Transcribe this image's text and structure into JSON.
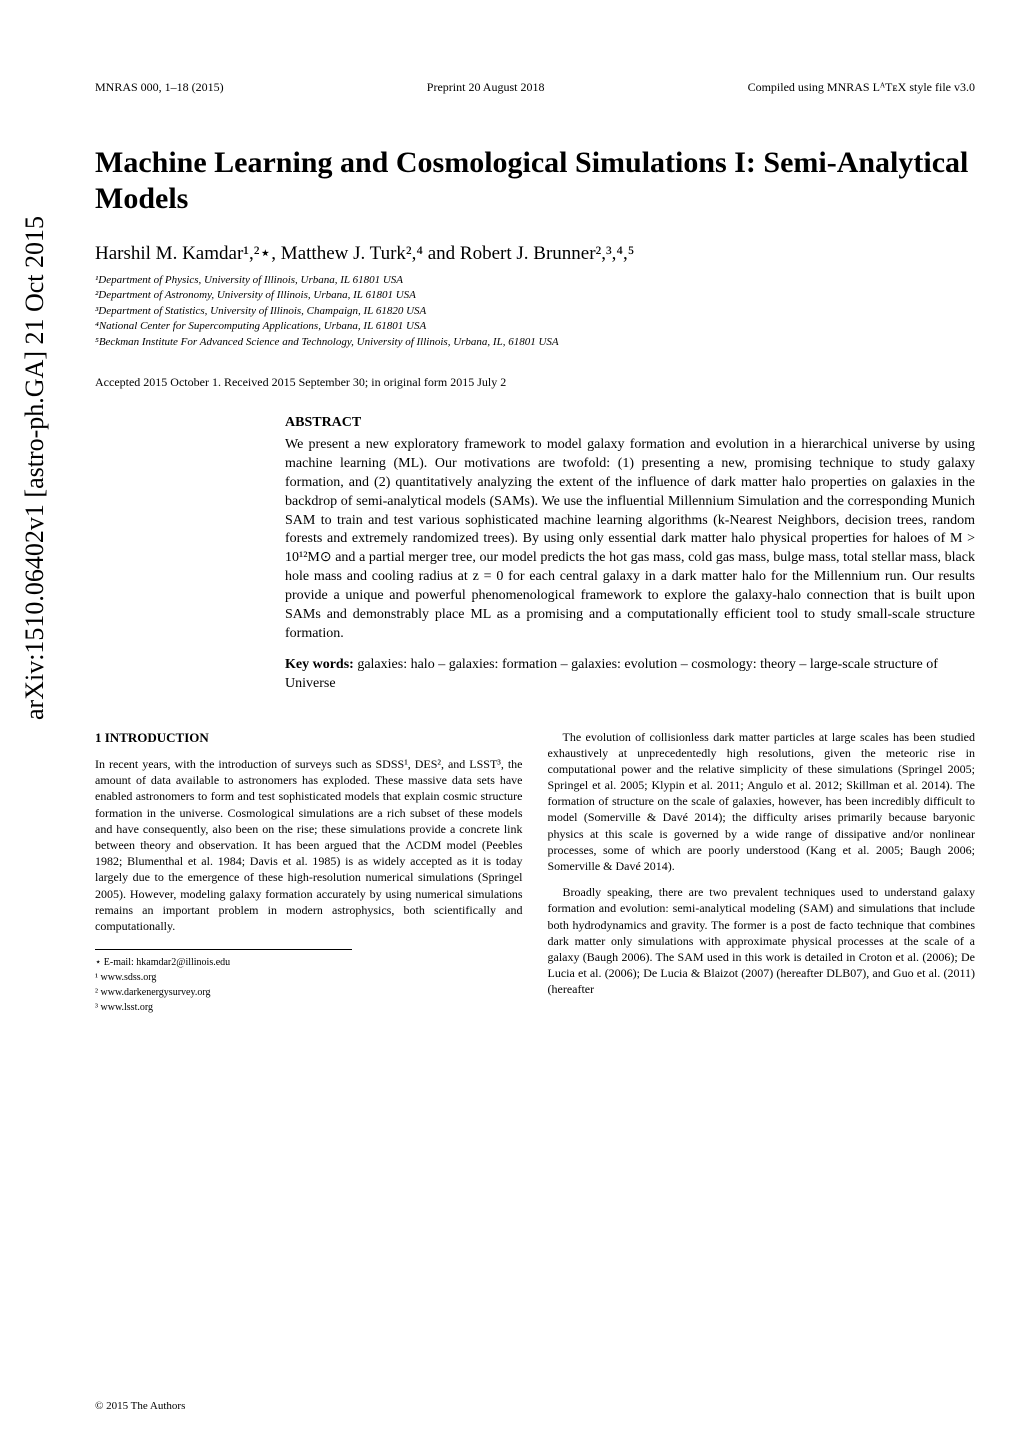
{
  "arxiv": "arXiv:1510.06402v1  [astro-ph.GA]  21 Oct 2015",
  "header": {
    "left": "MNRAS 000, 1–18 (2015)",
    "center": "Preprint 20 August 2018",
    "right": "Compiled using MNRAS LᴬTᴇX style file v3.0"
  },
  "title": "Machine Learning and Cosmological Simulations I: Semi-Analytical Models",
  "authors": "Harshil M. Kamdar¹,²⋆, Matthew J. Turk²,⁴ and Robert J. Brunner²,³,⁴,⁵",
  "affiliations": [
    "¹Department of Physics, University of Illinois, Urbana, IL 61801 USA",
    "²Department of Astronomy, University of Illinois, Urbana, IL 61801 USA",
    "³Department of Statistics, University of Illinois, Champaign, IL 61820 USA",
    "⁴National Center for Supercomputing Applications, Urbana, IL 61801 USA",
    "⁵Beckman Institute For Advanced Science and Technology, University of Illinois, Urbana, IL, 61801 USA"
  ],
  "accepted": "Accepted 2015 October 1. Received 2015 September 30; in original form 2015 July 2",
  "abstract": {
    "heading": "ABSTRACT",
    "text": "We present a new exploratory framework to model galaxy formation and evolution in a hierarchical universe by using machine learning (ML). Our motivations are twofold: (1) presenting a new, promising technique to study galaxy formation, and (2) quantitatively analyzing the extent of the influence of dark matter halo properties on galaxies in the backdrop of semi-analytical models (SAMs). We use the influential Millennium Simulation and the corresponding Munich SAM to train and test various sophisticated machine learning algorithms (k-Nearest Neighbors, decision trees, random forests and extremely randomized trees). By using only essential dark matter halo physical properties for haloes of M > 10¹²M⊙ and a partial merger tree, our model predicts the hot gas mass, cold gas mass, bulge mass, total stellar mass, black hole mass and cooling radius at z = 0 for each central galaxy in a dark matter halo for the Millennium run. Our results provide a unique and powerful phenomenological framework to explore the galaxy-halo connection that is built upon SAMs and demonstrably place ML as a promising and a computationally efficient tool to study small-scale structure formation."
  },
  "keywords": {
    "label": "Key words:",
    "text": " galaxies: halo – galaxies: formation – galaxies: evolution – cosmology: theory – large-scale structure of Universe"
  },
  "section1": {
    "heading": "1   INTRODUCTION",
    "para1": "In recent years, with the introduction of surveys such as SDSS¹, DES², and LSST³, the amount of data available to astronomers has exploded. These massive data sets have enabled astronomers to form and test sophisticated models that explain cosmic structure formation in the universe. Cosmological simulations are a rich subset of these models and have consequently, also been on the rise; these simulations provide a concrete link between theory and observation. It has been argued that the ΛCDM model (Peebles 1982; Blumenthal et al. 1984; Davis et al. 1985) is as widely accepted as it is today largely due to the emergence of these high-resolution numerical simulations (Springel 2005). However, modeling galaxy formation accurately by using numerical simulations remains an important problem in modern astrophysics, both scientifically and computationally.",
    "para2": "The evolution of collisionless dark matter particles at large scales has been studied exhaustively at unprecedentedly high resolutions, given the meteoric rise in computational power and the relative simplicity of these simulations (Springel 2005; Springel et al. 2005; Klypin et al. 2011; Angulo et al. 2012; Skillman et al. 2014). The formation of structure on the scale of galaxies, however, has been incredibly difficult to model (Somerville & Davé 2014); the difficulty arises primarily because baryonic physics at this scale is governed by a wide range of dissipative and/or nonlinear processes, some of which are poorly understood (Kang et al. 2005; Baugh 2006; Somerville & Davé 2014).",
    "para3": "Broadly speaking, there are two prevalent techniques used to understand galaxy formation and evolution: semi-analytical modeling (SAM) and simulations that include both hydrodynamics and gravity. The former is a post de facto technique that combines dark matter only simulations with approximate physical processes at the scale of a galaxy (Baugh 2006). The SAM used in this work is detailed in Croton et al. (2006); De Lucia et al. (2006); De Lucia & Blaizot (2007) (hereafter DLB07), and Guo et al. (2011) (hereafter"
  },
  "footnotes": [
    "⋆ E-mail: hkamdar2@illinois.edu",
    "¹ www.sdss.org",
    "² www.darkenergysurvey.org",
    "³ www.lsst.org"
  ],
  "copyright": "© 2015 The Authors"
}
